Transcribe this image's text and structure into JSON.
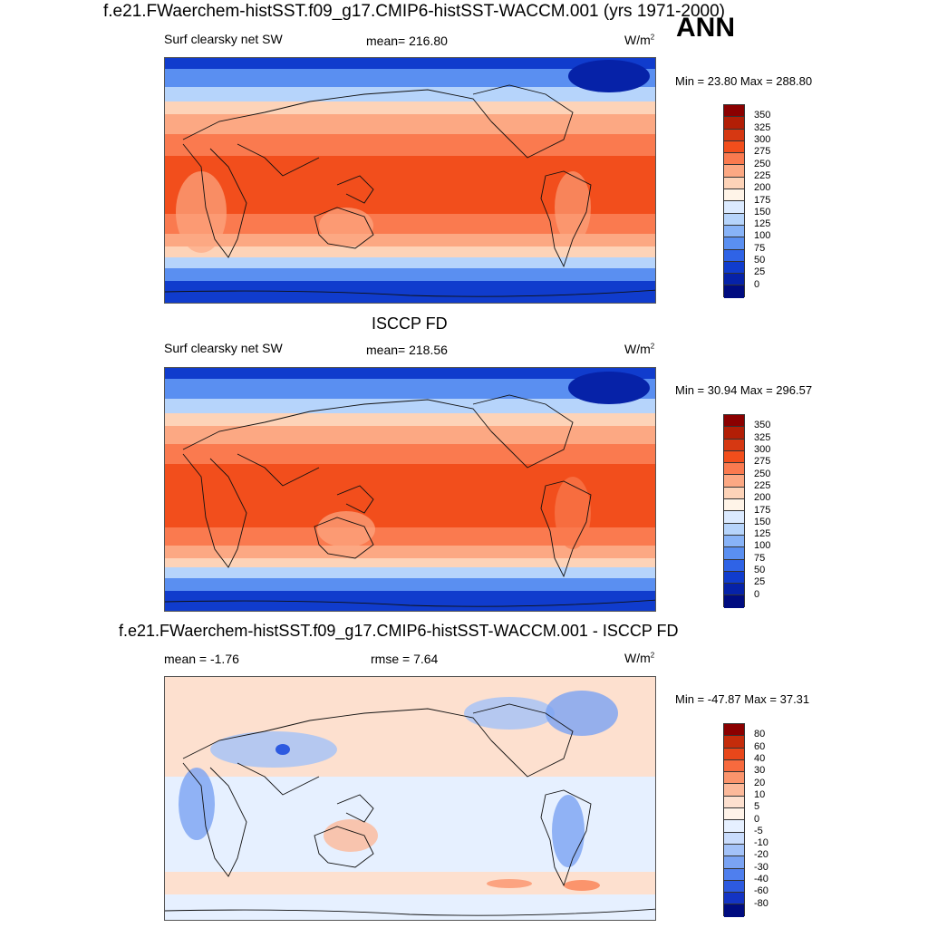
{
  "header": {
    "title": "f.e21.FWaerchem-histSST.f09_g17.CMIP6-histSST-WACCM.001 (yrs 1971-2000)",
    "season": "ANN"
  },
  "panels": [
    {
      "title": "",
      "left_label": "Surf clearsky net SW",
      "center_label": "mean= 216.80",
      "units": "W/m",
      "units_sup": "2",
      "minmax": "Min =  23.80 Max = 288.80",
      "colorbar_ticks": [
        "350",
        "325",
        "300",
        "275",
        "250",
        "225",
        "200",
        "175",
        "150",
        "125",
        "100",
        "75",
        "50",
        "25",
        "0"
      ]
    },
    {
      "title": "ISCCP FD",
      "left_label": "Surf clearsky net SW",
      "center_label": "mean= 218.56",
      "units": "W/m",
      "units_sup": "2",
      "minmax": "Min =  30.94 Max = 296.57",
      "colorbar_ticks": [
        "350",
        "325",
        "300",
        "275",
        "250",
        "225",
        "200",
        "175",
        "150",
        "125",
        "100",
        "75",
        "50",
        "25",
        "0"
      ]
    },
    {
      "title": "f.e21.FWaerchem-histSST.f09_g17.CMIP6-histSST-WACCM.001 - ISCCP FD",
      "left_label": "mean =  -1.76",
      "center_label": "rmse =   7.64",
      "units": "W/m",
      "units_sup": "2",
      "minmax": "Min = -47.87 Max =  37.31",
      "colorbar_ticks": [
        "80",
        "60",
        "40",
        "30",
        "20",
        "10",
        "5",
        "0",
        "-5",
        "-10",
        "-20",
        "-30",
        "-40",
        "-60",
        "-80"
      ]
    }
  ],
  "colors": {
    "abs_scale": [
      "#8b0000",
      "#b21e06",
      "#d63812",
      "#f24e1c",
      "#fa7a4f",
      "#fca883",
      "#fdd3b8",
      "#fff4e8",
      "#dbeaff",
      "#b6d4fb",
      "#88b3f7",
      "#5a8ff1",
      "#2f63e6",
      "#103ccd",
      "#0622a8",
      "#000c80"
    ],
    "diff_scale": [
      "#8b0000",
      "#c42c0b",
      "#e8471a",
      "#f76a3e",
      "#fb946c",
      "#fcb99a",
      "#fde0cf",
      "#fff3e9",
      "#e6f0ff",
      "#c9dcfc",
      "#a3c2f8",
      "#7aa3f3",
      "#4f7fee",
      "#2d5ae0",
      "#1434c4",
      "#000c80"
    ]
  }
}
